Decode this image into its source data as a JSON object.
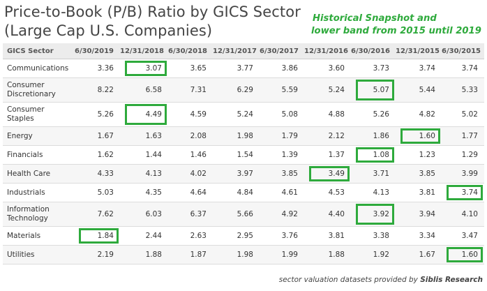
{
  "title": {
    "line1": "Price-to-Book (P/B) Ratio by GICS Sector",
    "line2": "(Large Cap U.S. Companies)"
  },
  "note": {
    "line1": "Historical Snapshot and",
    "line2": "lower band from 2015 until 2019"
  },
  "table": {
    "headers": [
      "GICS Sector",
      "6/30/2019",
      "12/31/2018",
      "6/30/2018",
      "12/31/2017",
      "6/30/2017",
      "12/31/2016",
      "6/30/2016",
      "12/31/2015",
      "6/30/2015"
    ],
    "rows": [
      {
        "sector": [
          "Communications"
        ],
        "values": [
          "3.36",
          "3.07",
          "3.65",
          "3.77",
          "3.86",
          "3.60",
          "3.73",
          "3.74",
          "3.74"
        ],
        "highlight": 1
      },
      {
        "sector": [
          "Consumer",
          "Discretionary"
        ],
        "values": [
          "8.22",
          "6.58",
          "7.31",
          "6.29",
          "5.59",
          "5.24",
          "5.07",
          "5.44",
          "5.33"
        ],
        "highlight": 6
      },
      {
        "sector": [
          "Consumer",
          "Staples"
        ],
        "values": [
          "5.26",
          "4.49",
          "4.59",
          "5.24",
          "5.08",
          "4.88",
          "5.26",
          "4.82",
          "5.02"
        ],
        "highlight": 1
      },
      {
        "sector": [
          "Energy"
        ],
        "values": [
          "1.67",
          "1.63",
          "2.08",
          "1.98",
          "1.79",
          "2.12",
          "1.86",
          "1.60",
          "1.77"
        ],
        "highlight": 7
      },
      {
        "sector": [
          "Financials"
        ],
        "values": [
          "1.62",
          "1.44",
          "1.46",
          "1.54",
          "1.39",
          "1.37",
          "1.08",
          "1.23",
          "1.29"
        ],
        "highlight": 6
      },
      {
        "sector": [
          "Health Care"
        ],
        "values": [
          "4.33",
          "4.13",
          "4.02",
          "3.97",
          "3.85",
          "3.49",
          "3.71",
          "3.85",
          "3.99"
        ],
        "highlight": 5
      },
      {
        "sector": [
          "Industrials"
        ],
        "values": [
          "5.03",
          "4.35",
          "4.64",
          "4.84",
          "4.61",
          "4.53",
          "4.13",
          "3.81",
          "3.74"
        ],
        "highlight": 8
      },
      {
        "sector": [
          "Information",
          "Technology"
        ],
        "values": [
          "7.62",
          "6.03",
          "6.37",
          "5.66",
          "4.92",
          "4.40",
          "3.92",
          "3.94",
          "4.10"
        ],
        "highlight": 6
      },
      {
        "sector": [
          "Materials"
        ],
        "values": [
          "1.84",
          "2.44",
          "2.63",
          "2.95",
          "3.76",
          "3.81",
          "3.38",
          "3.34",
          "3.47"
        ],
        "highlight": 0
      },
      {
        "sector": [
          "Utilities"
        ],
        "values": [
          "2.19",
          "1.88",
          "1.87",
          "1.98",
          "1.99",
          "1.88",
          "1.92",
          "1.67",
          "1.60"
        ],
        "highlight": 8
      }
    ]
  },
  "credit": {
    "prefix": "sector valuation datasets provided by ",
    "brand": "Siblis Research"
  },
  "colors": {
    "highlight_border": "#2eaa3c",
    "note_text": "#2eaa3c",
    "header_bg": "#ececec",
    "stripe_bg": "#f6f6f6"
  }
}
